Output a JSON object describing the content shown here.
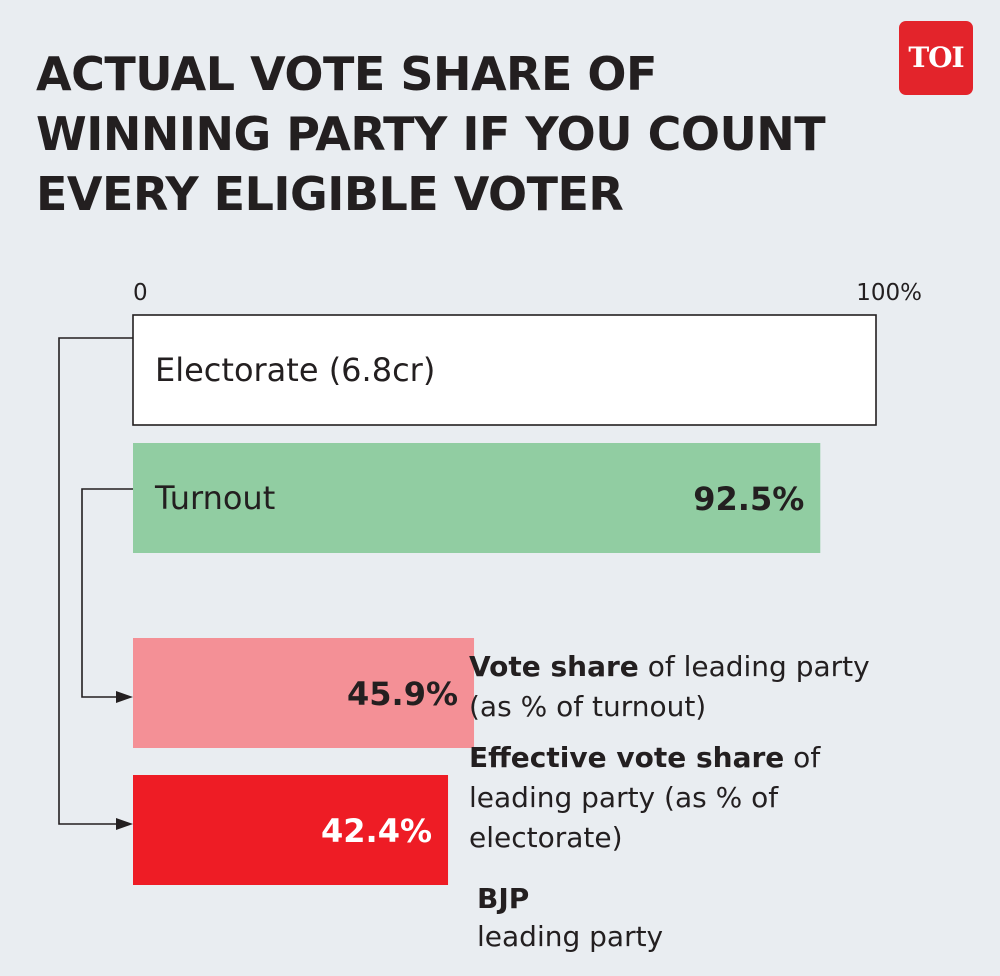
{
  "chart_data": {
    "type": "bar",
    "title_lines": [
      "ACTUAL VOTE SHARE OF",
      "WINNING PARTY IF YOU COUNT",
      "EVERY ELIGIBLE VOTER"
    ],
    "logo": "TOI",
    "axis": {
      "min_label": "0",
      "max_label": "100%",
      "range": [
        0,
        100
      ]
    },
    "bars": [
      {
        "label": "Electorate (6.8cr)",
        "value": 100,
        "value_label": "",
        "color": "#ffffff",
        "outline": true
      },
      {
        "label": "Turnout",
        "value": 92.5,
        "value_label": "92.5%",
        "color": "#91cda2",
        "text_color": "#231f20"
      },
      {
        "label": "",
        "value": 45.9,
        "value_label": "45.9%",
        "color": "#f49096",
        "text_color": "#231f20"
      },
      {
        "label": "",
        "value": 42.4,
        "value_label": "42.4%",
        "color": "#ee1c25",
        "text_color": "#ffffff"
      }
    ],
    "annotations": {
      "vote_share": {
        "bold": "Vote share",
        "rest": " of leading party",
        "line2": "(as % of turnout)"
      },
      "effective": {
        "bold": "Effective vote share",
        "rest": " of",
        "line2": "leading party (as % of",
        "line3": "electorate)"
      },
      "party": {
        "bold": "BJP",
        "line2": "leading party"
      }
    },
    "colors": {
      "background": "#e9edf1",
      "accent": "#e3242b",
      "line": "#231f20"
    }
  }
}
